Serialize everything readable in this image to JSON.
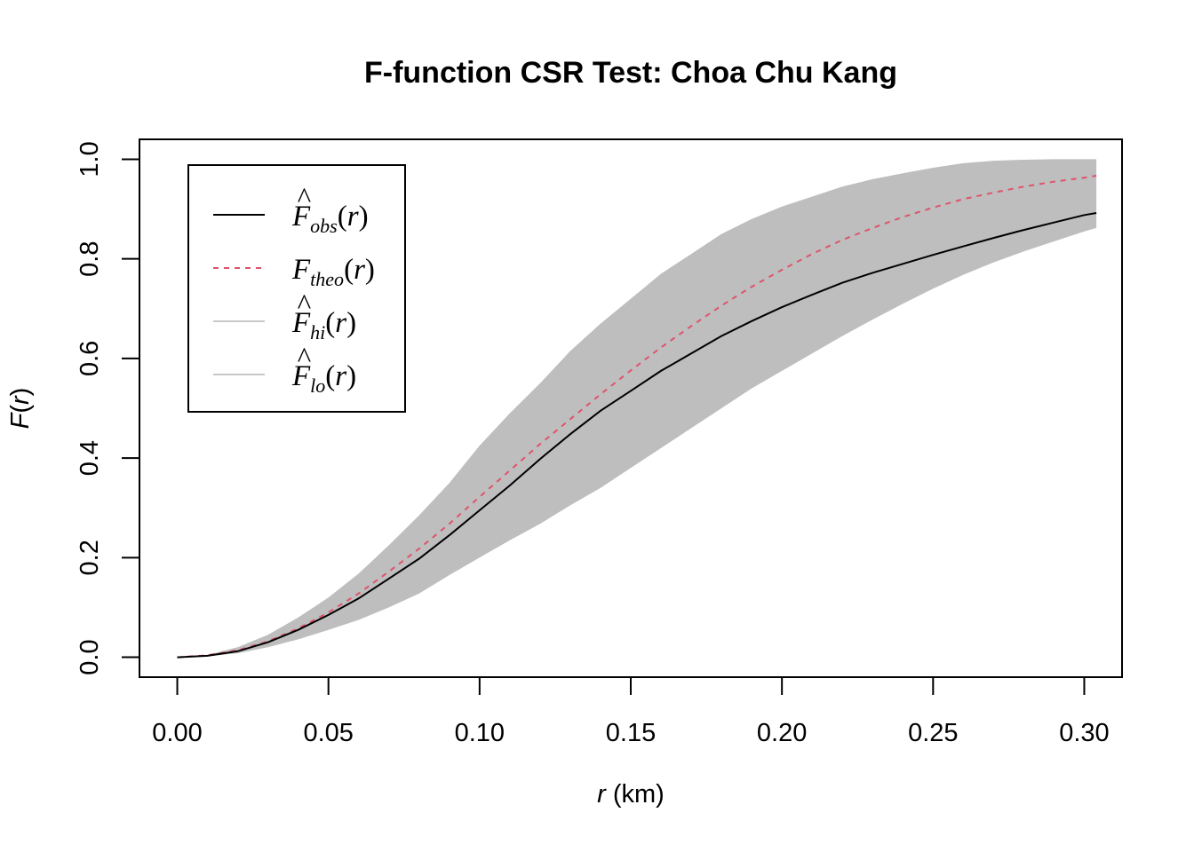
{
  "chart_data": {
    "type": "line",
    "title": "F-function CSR Test: Choa Chu Kang",
    "xlabel": {
      "var": "r",
      "unit": " (km)"
    },
    "ylabel": {
      "fn": "F",
      "open": "(",
      "var": "r",
      "close": ")"
    },
    "xlim": [
      -0.0125,
      0.3125
    ],
    "ylim": [
      -0.04,
      1.04
    ],
    "xticks": [
      {
        "value": 0.0,
        "label": "0.00"
      },
      {
        "value": 0.05,
        "label": "0.05"
      },
      {
        "value": 0.1,
        "label": "0.10"
      },
      {
        "value": 0.15,
        "label": "0.15"
      },
      {
        "value": 0.2,
        "label": "0.20"
      },
      {
        "value": 0.25,
        "label": "0.25"
      },
      {
        "value": 0.3,
        "label": "0.30"
      }
    ],
    "yticks": [
      {
        "value": 0.0,
        "label": "0.0"
      },
      {
        "value": 0.2,
        "label": "0.2"
      },
      {
        "value": 0.4,
        "label": "0.4"
      },
      {
        "value": 0.6,
        "label": "0.6"
      },
      {
        "value": 0.8,
        "label": "0.8"
      },
      {
        "value": 1.0,
        "label": "1.0"
      }
    ],
    "x": [
      0,
      0.01,
      0.02,
      0.03,
      0.04,
      0.05,
      0.06,
      0.07,
      0.08,
      0.09,
      0.1,
      0.11,
      0.12,
      0.13,
      0.14,
      0.15,
      0.16,
      0.17,
      0.18,
      0.19,
      0.2,
      0.21,
      0.22,
      0.23,
      0.24,
      0.25,
      0.26,
      0.27,
      0.28,
      0.29,
      0.3,
      0.304
    ],
    "series": [
      {
        "key": "hi",
        "fn": "F",
        "hat": true,
        "sub": "hi",
        "legend_color": "#c8c8c8",
        "legend_dash": "",
        "values": [
          0,
          0.005,
          0.02,
          0.045,
          0.08,
          0.12,
          0.168,
          0.225,
          0.285,
          0.35,
          0.425,
          0.49,
          0.55,
          0.615,
          0.67,
          0.72,
          0.77,
          0.81,
          0.85,
          0.88,
          0.905,
          0.925,
          0.945,
          0.96,
          0.972,
          0.983,
          0.992,
          0.997,
          0.999,
          1.0,
          1.0,
          1.0
        ]
      },
      {
        "key": "lo",
        "fn": "F",
        "hat": true,
        "sub": "lo",
        "legend_color": "#c8c8c8",
        "legend_dash": "",
        "values": [
          0,
          0.002,
          0.008,
          0.02,
          0.036,
          0.055,
          0.075,
          0.1,
          0.128,
          0.165,
          0.2,
          0.235,
          0.268,
          0.305,
          0.34,
          0.38,
          0.42,
          0.46,
          0.5,
          0.54,
          0.575,
          0.61,
          0.645,
          0.678,
          0.71,
          0.74,
          0.768,
          0.793,
          0.815,
          0.835,
          0.855,
          0.862
        ]
      },
      {
        "key": "theo",
        "fn": "F",
        "hat": false,
        "sub": "theo",
        "color": "#DF536B",
        "legend_color": "#DF536B",
        "dash": "6,6",
        "legend_dash": "6,6",
        "values": [
          0,
          0.004,
          0.014,
          0.032,
          0.058,
          0.09,
          0.128,
          0.172,
          0.218,
          0.268,
          0.322,
          0.375,
          0.428,
          0.478,
          0.528,
          0.576,
          0.622,
          0.665,
          0.706,
          0.744,
          0.778,
          0.81,
          0.838,
          0.862,
          0.884,
          0.903,
          0.92,
          0.933,
          0.945,
          0.955,
          0.963,
          0.967
        ]
      },
      {
        "key": "obs",
        "fn": "F",
        "hat": true,
        "sub": "obs",
        "color": "#000000",
        "legend_color": "#000000",
        "dash": "",
        "legend_dash": "",
        "values": [
          0,
          0.003,
          0.012,
          0.03,
          0.055,
          0.085,
          0.118,
          0.158,
          0.198,
          0.245,
          0.295,
          0.345,
          0.398,
          0.448,
          0.495,
          0.535,
          0.575,
          0.61,
          0.645,
          0.675,
          0.703,
          0.728,
          0.752,
          0.772,
          0.79,
          0.808,
          0.825,
          0.842,
          0.858,
          0.873,
          0.888,
          0.892
        ]
      }
    ],
    "band": {
      "upper": "hi",
      "lower": "lo",
      "color": "#bebebe"
    },
    "legend": {
      "placement": "top-left",
      "order": [
        "obs",
        "theo",
        "hi",
        "lo"
      ]
    },
    "grid": false
  }
}
